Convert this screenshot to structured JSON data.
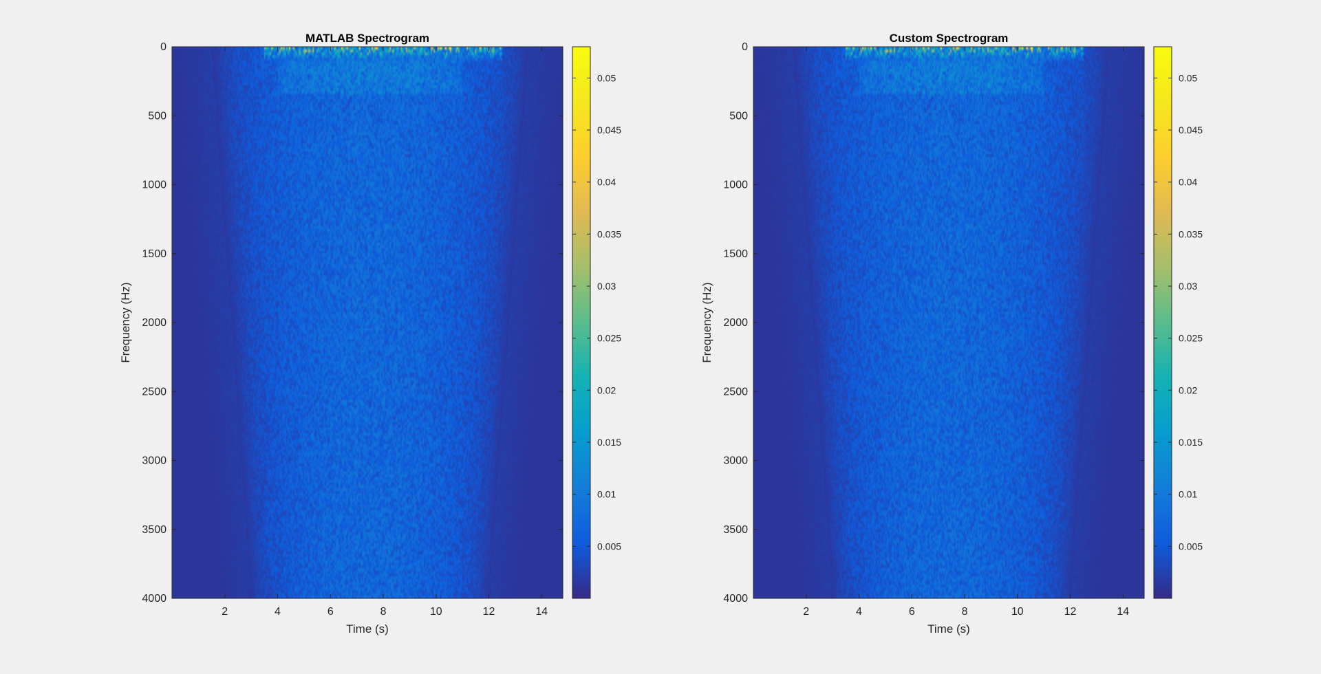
{
  "figure": {
    "background": "#f0f0f0"
  },
  "chart_data": [
    {
      "type": "heatmap",
      "title": "MATLAB Spectrogram",
      "xlabel": "Time (s)",
      "ylabel": "Frequency (Hz)",
      "xlim": [
        0,
        14.8
      ],
      "ylim": [
        0,
        4000
      ],
      "y_direction": "reverse",
      "xticks": [
        2,
        4,
        6,
        8,
        10,
        12,
        14
      ],
      "yticks": [
        0,
        500,
        1000,
        1500,
        2000,
        2500,
        3000,
        3500,
        4000
      ],
      "colorbar": {
        "range": [
          0,
          0.053
        ],
        "ticks": [
          0.005,
          0.01,
          0.015,
          0.02,
          0.025,
          0.03,
          0.035,
          0.04,
          0.045,
          0.05
        ],
        "tick_labels": [
          "0.005",
          "0.01",
          "0.015",
          "0.02",
          "0.025",
          "0.03",
          "0.035",
          "0.04",
          "0.045",
          "0.05"
        ],
        "colormap": "parula"
      },
      "signal": {
        "time_extent_s": [
          0,
          14.8
        ],
        "active_interval_s": [
          1.5,
          13.5
        ],
        "peak_band_hz": [
          0,
          100
        ],
        "peak_time_s": [
          3.5,
          12.5
        ],
        "peak_magnitude": 0.053,
        "typical_magnitude": 0.006,
        "seed": 7
      }
    },
    {
      "type": "heatmap",
      "title": "Custom Spectrogram",
      "xlabel": "Time (s)",
      "ylabel": "Frequency (Hz)",
      "xlim": [
        0,
        14.8
      ],
      "ylim": [
        0,
        4000
      ],
      "y_direction": "reverse",
      "xticks": [
        2,
        4,
        6,
        8,
        10,
        12,
        14
      ],
      "yticks": [
        0,
        500,
        1000,
        1500,
        2000,
        2500,
        3000,
        3500,
        4000
      ],
      "colorbar": {
        "range": [
          0,
          0.053
        ],
        "ticks": [
          0.005,
          0.01,
          0.015,
          0.02,
          0.025,
          0.03,
          0.035,
          0.04,
          0.045,
          0.05
        ],
        "tick_labels": [
          "0.005",
          "0.01",
          "0.015",
          "0.02",
          "0.025",
          "0.03",
          "0.035",
          "0.04",
          "0.045",
          "0.05"
        ],
        "colormap": "parula"
      },
      "signal": {
        "time_extent_s": [
          0,
          14.8
        ],
        "active_interval_s": [
          1.5,
          13.5
        ],
        "peak_band_hz": [
          0,
          100
        ],
        "peak_time_s": [
          3.5,
          12.5
        ],
        "peak_magnitude": 0.053,
        "typical_magnitude": 0.006,
        "seed": 7
      }
    }
  ]
}
